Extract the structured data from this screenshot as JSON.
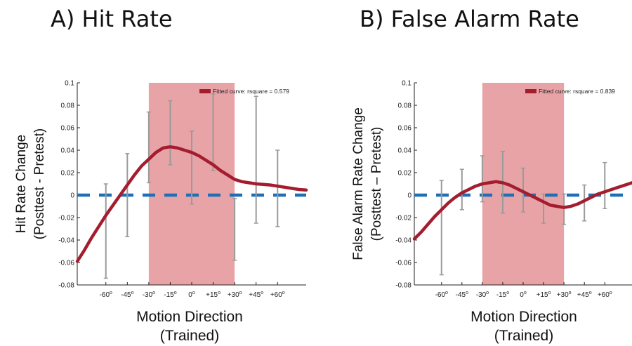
{
  "titles": {
    "a": "A) Hit Rate",
    "b": "B) False Alarm Rate"
  },
  "chart_data": [
    {
      "type": "line",
      "title": "A) Hit Rate",
      "xlabel": [
        "Motion Direction",
        "(Trained)"
      ],
      "ylabel": [
        "Hit Rate Change",
        "(Posttest - Pretest)"
      ],
      "ylim": [
        -0.08,
        0.1
      ],
      "yticks": [
        -0.08,
        -0.06,
        -0.04,
        -0.02,
        0,
        0.02,
        0.04,
        0.06,
        0.08,
        0.1
      ],
      "ytick_labels": [
        "-0.08",
        "-0.06",
        "-0.04",
        "-0.02",
        "0",
        "0.02",
        "0.04",
        "0.06",
        "0.08",
        "0.1"
      ],
      "xlim": [
        -80,
        80
      ],
      "xticks": [
        -60,
        -45,
        -30,
        -15,
        0,
        15,
        30,
        45,
        60
      ],
      "xtick_labels": [
        "-60",
        "-45",
        "-30",
        "-15",
        "0",
        "+15",
        "+30",
        "+45",
        "+60"
      ],
      "degree_suffix": "o",
      "shaded_region": {
        "from": -30,
        "to": 30,
        "color": "#e8a3a6"
      },
      "baseline": {
        "y": 0,
        "color": "#1f6fb6",
        "style": "dashed"
      },
      "legend": {
        "label": "Fitted curve: rsquare = 0.579",
        "color": "#a41d2f",
        "position": "top-right"
      },
      "fit_curve": {
        "color": "#a41d2f",
        "x": [
          -80,
          -75,
          -70,
          -65,
          -60,
          -55,
          -50,
          -45,
          -40,
          -35,
          -30,
          -25,
          -20,
          -15,
          -10,
          -5,
          0,
          5,
          10,
          15,
          20,
          25,
          30,
          35,
          40,
          45,
          50,
          55,
          60,
          65,
          70,
          75,
          80
        ],
        "y": [
          -0.059,
          -0.049,
          -0.038,
          -0.028,
          -0.018,
          -0.009,
          0.0,
          0.009,
          0.018,
          0.026,
          0.032,
          0.038,
          0.042,
          0.043,
          0.042,
          0.04,
          0.038,
          0.035,
          0.031,
          0.027,
          0.022,
          0.018,
          0.014,
          0.012,
          0.011,
          0.01,
          0.0095,
          0.009,
          0.008,
          0.007,
          0.006,
          0.005,
          0.0045
        ]
      },
      "error_bars": [
        {
          "x": -60,
          "low": -0.074,
          "high": 0.01
        },
        {
          "x": -45,
          "low": -0.037,
          "high": 0.037
        },
        {
          "x": -30,
          "low": 0.011,
          "high": 0.074
        },
        {
          "x": -15,
          "low": 0.027,
          "high": 0.084
        },
        {
          "x": 0,
          "low": -0.008,
          "high": 0.057
        },
        {
          "x": 15,
          "low": 0.022,
          "high": 0.09
        },
        {
          "x": 30,
          "low": -0.058,
          "high": -0.003
        },
        {
          "x": 45,
          "low": -0.025,
          "high": 0.088
        },
        {
          "x": 60,
          "low": -0.028,
          "high": 0.04
        }
      ]
    },
    {
      "type": "line",
      "title": "B) False Alarm Rate",
      "xlabel": [
        "Motion Direction",
        "(Trained)"
      ],
      "ylabel": [
        "False Alarm Rate Change",
        "(Posttest – Pretest)"
      ],
      "ylim": [
        -0.08,
        0.1
      ],
      "yticks": [
        -0.08,
        -0.06,
        -0.04,
        -0.02,
        0,
        0.02,
        0.04,
        0.06,
        0.08,
        0.1
      ],
      "ytick_labels": [
        "-0.08",
        "-0.06",
        "-0.04",
        "-0.02",
        "0",
        "0.02",
        "0.04",
        "0.06",
        "0.08",
        "0.1"
      ],
      "xlim": [
        -80,
        80
      ],
      "xticks": [
        -60,
        -45,
        -30,
        -15,
        0,
        15,
        30,
        45,
        60
      ],
      "xtick_labels": [
        "-60",
        "-45",
        "-30",
        "-15",
        "0",
        "+15",
        "+30",
        "+45",
        "+60"
      ],
      "degree_suffix": "o",
      "shaded_region": {
        "from": -30,
        "to": 30,
        "color": "#e8a3a6"
      },
      "baseline": {
        "y": 0,
        "color": "#1f6fb6",
        "style": "dashed"
      },
      "legend": {
        "label": "Fitted curve: rsquare = 0.839",
        "color": "#a41d2f",
        "position": "top-right"
      },
      "fit_curve": {
        "color": "#a41d2f",
        "x": [
          -80,
          -75,
          -70,
          -65,
          -60,
          -55,
          -50,
          -45,
          -40,
          -35,
          -30,
          -25,
          -20,
          -15,
          -10,
          -5,
          0,
          5,
          10,
          15,
          20,
          25,
          30,
          35,
          40,
          45,
          50,
          55,
          60,
          65,
          70,
          75,
          80
        ],
        "y": [
          -0.039,
          -0.033,
          -0.026,
          -0.019,
          -0.013,
          -0.007,
          -0.002,
          0.002,
          0.005,
          0.008,
          0.01,
          0.011,
          0.012,
          0.011,
          0.009,
          0.006,
          0.003,
          0.0,
          -0.003,
          -0.006,
          -0.009,
          -0.01,
          -0.011,
          -0.01,
          -0.008,
          -0.005,
          -0.002,
          0.001,
          0.003,
          0.005,
          0.007,
          0.009,
          0.011
        ]
      },
      "error_bars": [
        {
          "x": -60,
          "low": -0.071,
          "high": 0.013
        },
        {
          "x": -45,
          "low": -0.013,
          "high": 0.023
        },
        {
          "x": -30,
          "low": -0.006,
          "high": 0.035
        },
        {
          "x": -15,
          "low": -0.016,
          "high": 0.039
        },
        {
          "x": 0,
          "low": -0.015,
          "high": 0.024
        },
        {
          "x": 15,
          "low": -0.025,
          "high": 0.001
        },
        {
          "x": 30,
          "low": -0.026,
          "high": 0.001
        },
        {
          "x": 45,
          "low": -0.023,
          "high": 0.009
        },
        {
          "x": 60,
          "low": -0.012,
          "high": 0.029
        }
      ]
    }
  ]
}
